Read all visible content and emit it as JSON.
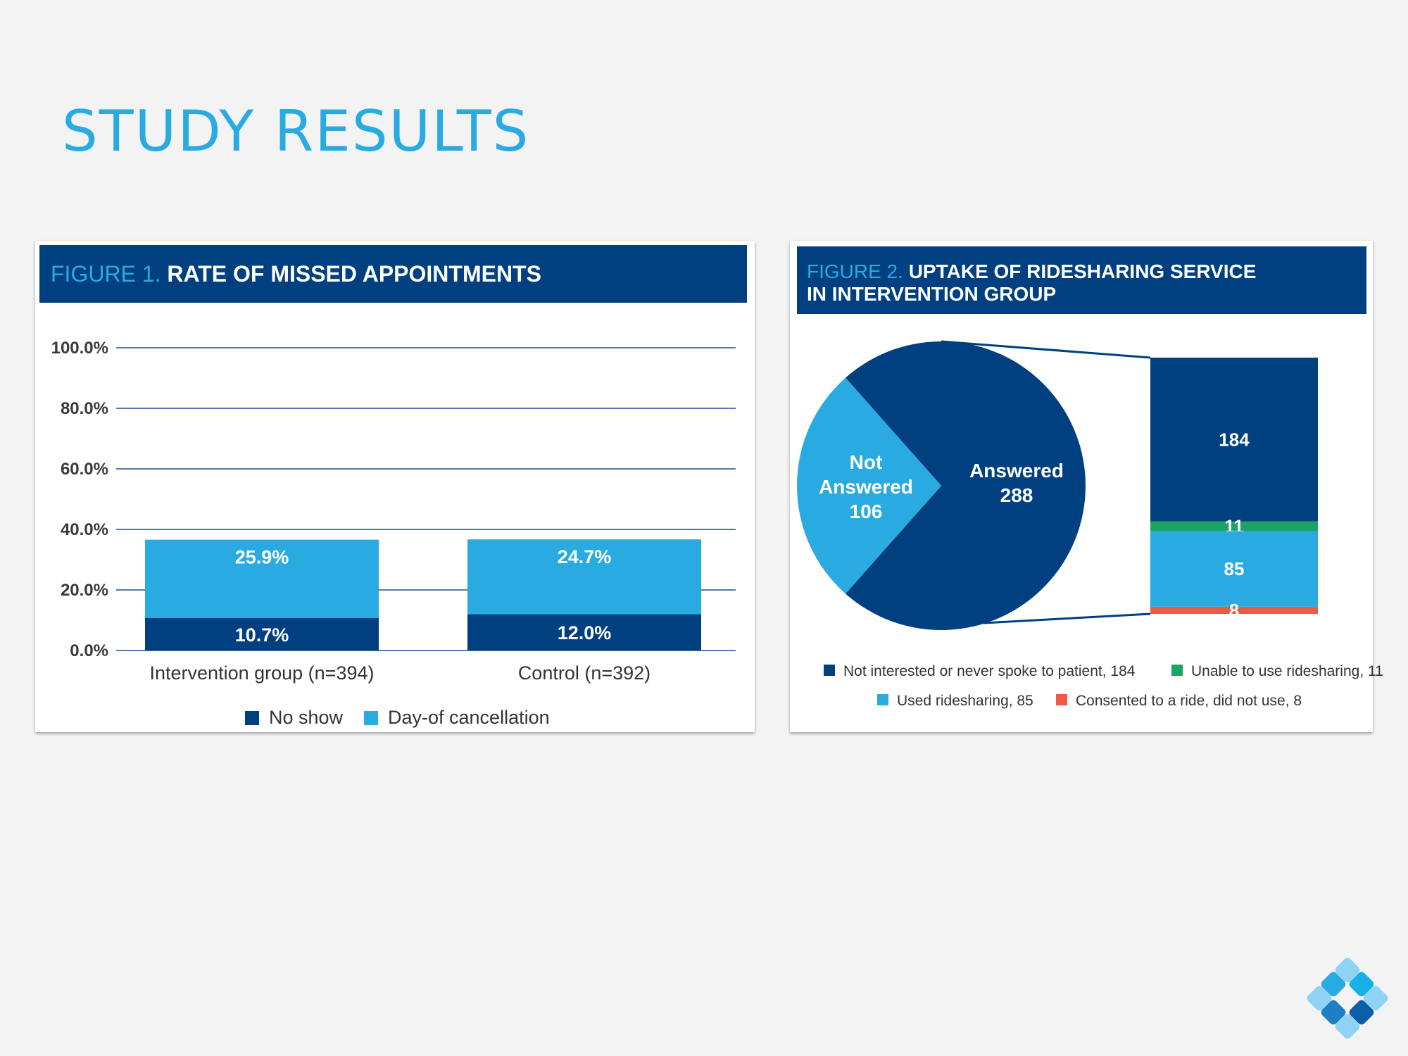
{
  "slide": {
    "title": "STUDY RESULTS"
  },
  "figure1": {
    "number": "FIGURE 1.",
    "title": "RATE OF MISSED APPOINTMENTS"
  },
  "figure2": {
    "number": "FIGURE 2.",
    "title_line1": "UPTAKE OF RIDESHARING SERVICE",
    "title_line2": "IN INTERVENTION GROUP"
  },
  "chart_data": [
    {
      "type": "bar",
      "stacked": true,
      "title": "FIGURE 1. RATE OF MISSED APPOINTMENTS",
      "categories": [
        "Intervention group (n=394)",
        "Control (n=392)"
      ],
      "series": [
        {
          "name": "No show",
          "values": [
            10.7,
            12.0
          ],
          "labels": [
            "10.7%",
            "12.0%"
          ],
          "color": "#004080"
        },
        {
          "name": "Day-of cancellation",
          "values": [
            25.9,
            24.7
          ],
          "labels": [
            "25.9%",
            "24.7%"
          ],
          "color": "#29abe2"
        }
      ],
      "yticks": [
        "0.0%",
        "20.0%",
        "40.0%",
        "60.0%",
        "80.0%",
        "100.0%"
      ],
      "ylim": [
        0,
        100
      ],
      "grid": true,
      "legend": "bottom-center"
    },
    {
      "type": "pie",
      "title": "FIGURE 2. UPTAKE OF RIDESHARING SERVICE IN INTERVENTION GROUP",
      "slices": [
        {
          "label_lines": [
            "Answered",
            "288"
          ],
          "value": 288,
          "color": "#004080"
        },
        {
          "label_lines": [
            "Not",
            "Answered",
            "106"
          ],
          "value": 106,
          "color": "#29abe2"
        }
      ],
      "breakdown": [
        {
          "label": "184",
          "value": 184,
          "color": "#004080"
        },
        {
          "label": "11",
          "value": 11,
          "color": "#1ba463"
        },
        {
          "label": "85",
          "value": 85,
          "color": "#29abe2"
        },
        {
          "label": "8",
          "value": 8,
          "color": "#ef5a45"
        }
      ],
      "legend": [
        {
          "text": "Not interested or never spoke to patient, 184",
          "color": "#004080"
        },
        {
          "text": "Unable to use ridesharing, 11",
          "color": "#1ba463"
        },
        {
          "text": "Used ridesharing, 85",
          "color": "#29abe2"
        },
        {
          "text": "Consented to a ride, did not use, 8",
          "color": "#ef5a45"
        }
      ],
      "legend_placement": "bottom-center"
    }
  ]
}
